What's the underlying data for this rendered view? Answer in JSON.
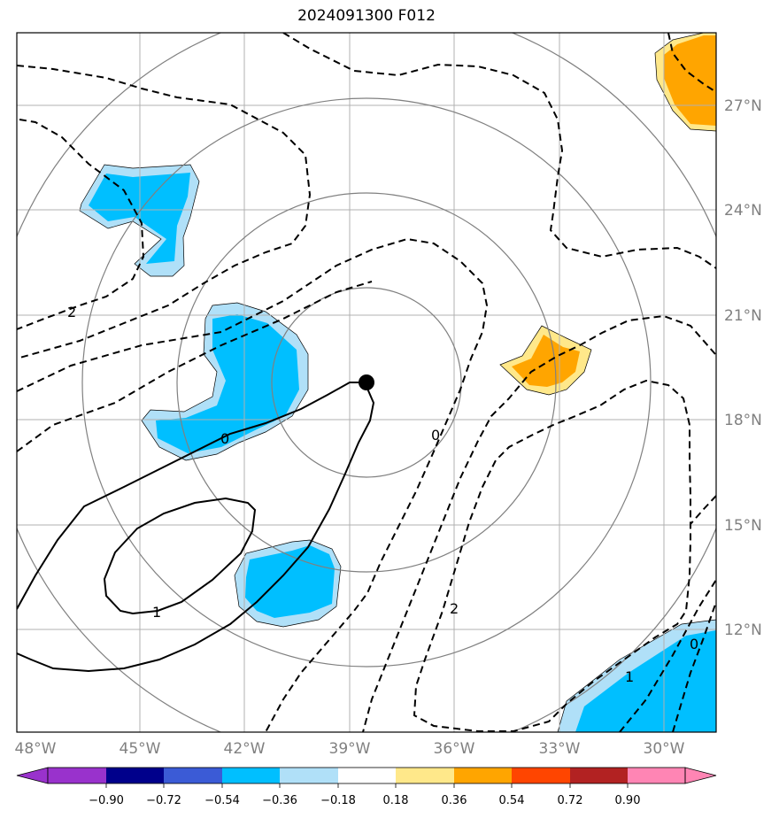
{
  "title": "2024091300 F012",
  "map": {
    "lon_range": [
      -48.3,
      -28.3
    ],
    "lat_range": [
      9.5,
      29.5
    ],
    "lon_ticks": [
      "48°W",
      "45°W",
      "42°W",
      "39°W",
      "36°W",
      "33°W",
      "30°W"
    ],
    "lat_ticks": [
      "27°N",
      "24°N",
      "21°N",
      "18°N",
      "15°N",
      "12°N"
    ],
    "gridlines": true,
    "center_marker": {
      "lon": -38.5,
      "lat": 19.0
    },
    "range_rings": 4,
    "contour_labels": [
      "2",
      "0",
      "0",
      "1",
      "2",
      "1",
      "0"
    ]
  },
  "colorbar": {
    "ticks": [
      "−0.90",
      "−0.72",
      "−0.54",
      "−0.36",
      "−0.18",
      "0.18",
      "0.36",
      "0.54",
      "0.72",
      "0.90"
    ],
    "colors": [
      "#9932cc",
      "#00008b",
      "#3b5bd6",
      "#00bfff",
      "#b0e0f8",
      "#ffffff",
      "#ffe88a",
      "#ffa500",
      "#ff4500",
      "#b22222",
      "#ff85b4"
    ]
  }
}
